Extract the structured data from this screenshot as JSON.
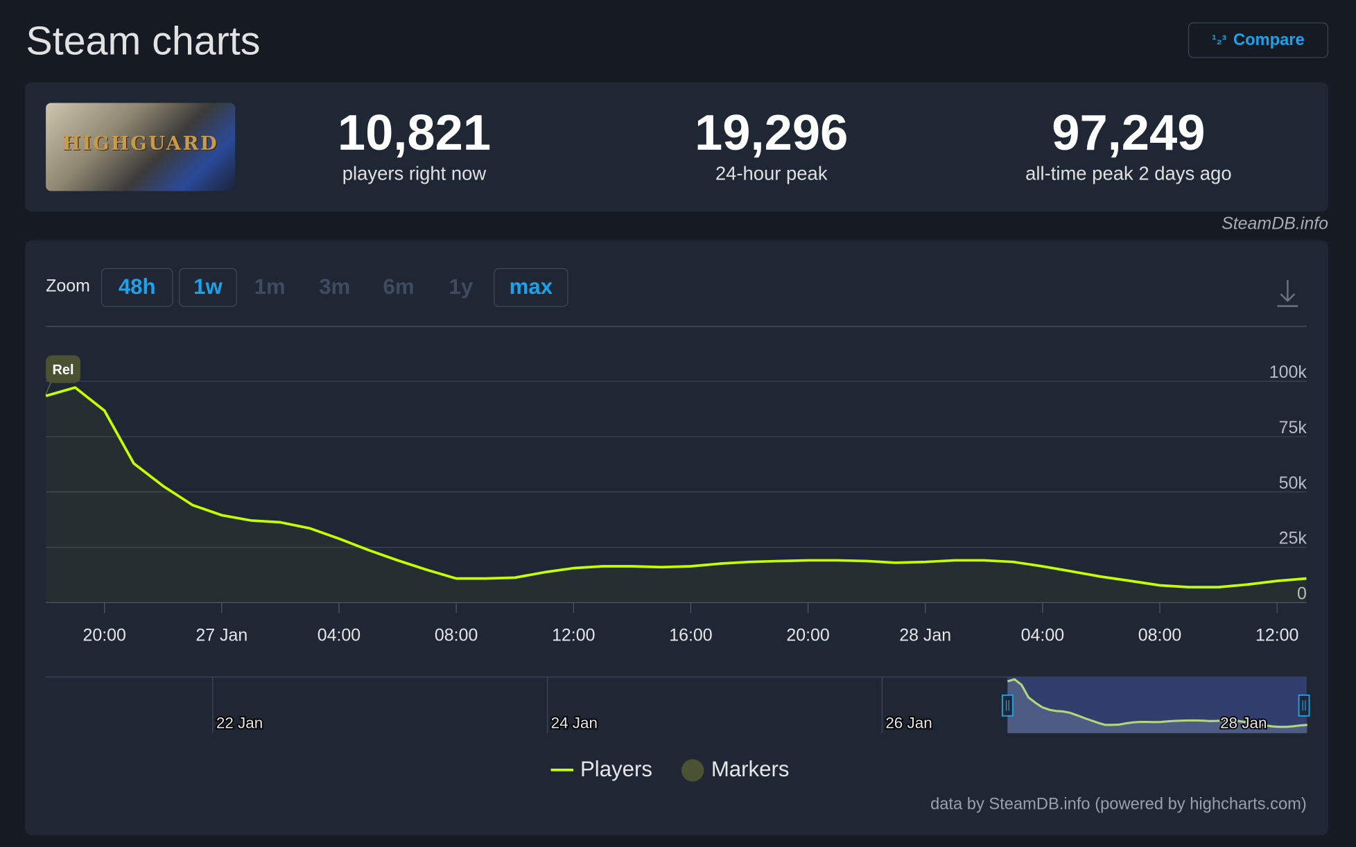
{
  "page": {
    "title": "Steam charts",
    "compare_label": "Compare",
    "compare_icon": "sort-numeric-icon",
    "compare_icon_glyph": "¹₂³"
  },
  "game": {
    "cover_logo_text": "HIGHGUARD"
  },
  "stats": [
    {
      "value": "10,821",
      "label": "players right now"
    },
    {
      "value": "19,296",
      "label": "24-hour peak"
    },
    {
      "value": "97,249",
      "label": "all-time peak 2 days ago"
    }
  ],
  "credit": "SteamDB.info",
  "zoom": {
    "label": "Zoom",
    "options": [
      {
        "label": "48h",
        "enabled": true
      },
      {
        "label": "1w",
        "enabled": true
      },
      {
        "label": "1m",
        "enabled": false
      },
      {
        "label": "3m",
        "enabled": false
      },
      {
        "label": "6m",
        "enabled": false
      },
      {
        "label": "1y",
        "enabled": false
      },
      {
        "label": "max",
        "enabled": true
      }
    ]
  },
  "colors": {
    "series": "#c6ff00",
    "accent": "#1aa3ec",
    "marker": "#4a5233",
    "navigator_selection": "#323f6e"
  },
  "chart_data": {
    "type": "line",
    "series": [
      {
        "name": "Players",
        "x_hours_from_26jan_18h": [
          0,
          1,
          2,
          3,
          4,
          5,
          6,
          7,
          8,
          9,
          10,
          11,
          12,
          13,
          14,
          15,
          16,
          17,
          18,
          19,
          20,
          21,
          22,
          23,
          24,
          25,
          26,
          27,
          28,
          29,
          30,
          31,
          32,
          33,
          34,
          35,
          36,
          37,
          38,
          39,
          40,
          41,
          42,
          43
        ],
        "values": [
          93400,
          97200,
          86700,
          62900,
          52700,
          44100,
          39500,
          37100,
          36300,
          33600,
          28900,
          23800,
          19100,
          14800,
          10900,
          10900,
          11300,
          13700,
          15600,
          16400,
          16400,
          16000,
          16400,
          17600,
          18400,
          18800,
          19100,
          19100,
          18800,
          18000,
          18400,
          19100,
          19100,
          18400,
          16400,
          14100,
          11700,
          9800,
          7800,
          7000,
          7000,
          8200,
          9800,
          10900
        ]
      }
    ],
    "y_ticks": [
      "0",
      "25k",
      "50k",
      "75k",
      "100k"
    ],
    "ylim": [
      0,
      100000
    ],
    "x_ticks": [
      "20:00",
      "27 Jan",
      "04:00",
      "08:00",
      "12:00",
      "16:00",
      "20:00",
      "28 Jan",
      "04:00",
      "08:00",
      "12:00"
    ],
    "marker": {
      "label": "Rel",
      "x_hours_from_26jan_18h": 0
    },
    "navigator_ticks": [
      "22 Jan",
      "24 Jan",
      "26 Jan",
      "28 Jan"
    ],
    "legend": [
      "Players",
      "Markers"
    ],
    "grid": true
  },
  "footer": "data by SteamDB.info (powered by highcharts.com)"
}
